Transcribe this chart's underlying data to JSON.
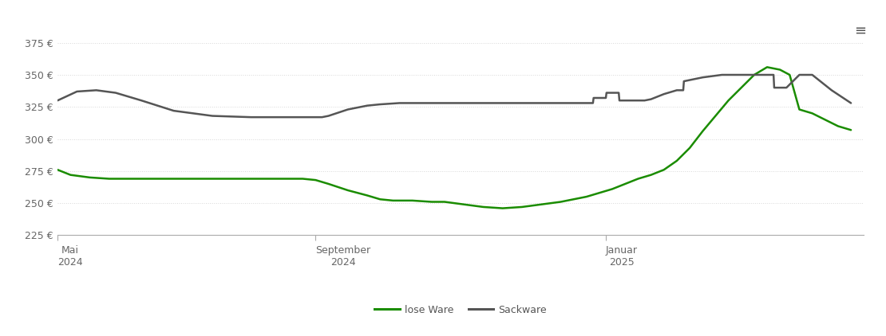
{
  "background_color": "#ffffff",
  "grid_color": "#d8d8d8",
  "grid_style": "dotted",
  "lose_ware_color": "#1a8c00",
  "sackware_color": "#555555",
  "lose_ware_label": "lose Ware",
  "sackware_label": "Sackware",
  "ylim": [
    225,
    390
  ],
  "yticks": [
    225,
    250,
    275,
    300,
    325,
    350,
    375
  ],
  "ytick_labels": [
    "225 €",
    "250 €",
    "275 €",
    "300 €",
    "325 €",
    "350 €",
    "375 €"
  ],
  "xlim": [
    0,
    12.5
  ],
  "xtick_positions": [
    0.0,
    4.0,
    8.5
  ],
  "xtick_labels": [
    "Mai\n2024",
    "September\n2024",
    "Januar\n2025"
  ],
  "lose_ware_x": [
    0.0,
    0.2,
    0.5,
    0.8,
    1.2,
    1.8,
    2.5,
    3.2,
    3.8,
    4.0,
    4.2,
    4.5,
    4.8,
    5.0,
    5.2,
    5.5,
    5.8,
    6.0,
    6.3,
    6.6,
    6.9,
    7.2,
    7.5,
    7.8,
    8.0,
    8.2,
    8.4,
    8.6,
    8.8,
    9.0,
    9.2,
    9.4,
    9.6,
    9.8,
    10.0,
    10.2,
    10.4,
    10.6,
    10.8,
    11.0,
    11.2,
    11.35,
    11.5,
    11.7,
    11.9,
    12.1,
    12.3
  ],
  "lose_ware_y": [
    276,
    272,
    270,
    269,
    269,
    269,
    269,
    269,
    269,
    268,
    265,
    260,
    256,
    253,
    252,
    252,
    251,
    251,
    249,
    247,
    246,
    247,
    249,
    251,
    253,
    255,
    258,
    261,
    265,
    269,
    272,
    276,
    283,
    293,
    306,
    318,
    330,
    340,
    350,
    356,
    354,
    350,
    323,
    320,
    315,
    310,
    307
  ],
  "sackware_x": [
    0.0,
    0.3,
    0.6,
    0.9,
    1.3,
    1.8,
    2.4,
    3.0,
    3.5,
    3.8,
    4.0,
    4.1,
    4.2,
    4.5,
    4.8,
    5.0,
    5.3,
    5.6,
    5.9,
    6.2,
    6.5,
    6.8,
    7.1,
    7.4,
    7.7,
    8.0,
    8.2,
    8.3,
    8.31,
    8.5,
    8.51,
    8.7,
    8.71,
    9.0,
    9.1,
    9.2,
    9.4,
    9.6,
    9.7,
    9.71,
    10.0,
    10.3,
    10.6,
    10.9,
    11.1,
    11.11,
    11.3,
    11.5,
    11.7,
    12.0,
    12.3
  ],
  "sackware_y": [
    330,
    337,
    338,
    336,
    330,
    322,
    318,
    317,
    317,
    317,
    317,
    317,
    318,
    323,
    326,
    327,
    328,
    328,
    328,
    328,
    328,
    328,
    328,
    328,
    328,
    328,
    328,
    328,
    332,
    332,
    336,
    336,
    330,
    330,
    330,
    331,
    335,
    338,
    338,
    345,
    348,
    350,
    350,
    350,
    350,
    340,
    340,
    350,
    350,
    338,
    328
  ],
  "line_width": 1.8
}
